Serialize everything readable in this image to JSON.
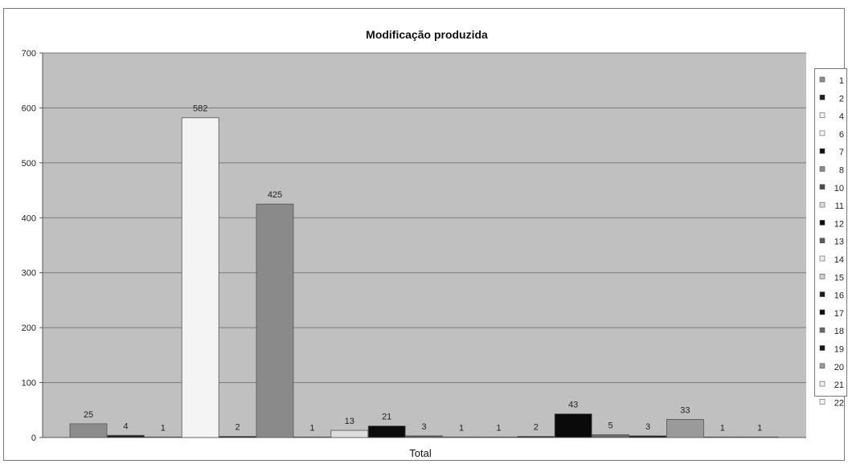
{
  "chart_data": {
    "type": "bar",
    "title": "Modificação produzida",
    "xlabel": "Total",
    "ylabel": "",
    "ylim": [
      0,
      700
    ],
    "yticks": [
      0,
      100,
      200,
      300,
      400,
      500,
      600,
      700
    ],
    "grid": true,
    "legend_position": "right",
    "categories": [
      "Total"
    ],
    "series": [
      {
        "name": "1",
        "values": [
          25
        ],
        "color": "#8c8c8c"
      },
      {
        "name": "2",
        "values": [
          4
        ],
        "color": "#1e1e1e"
      },
      {
        "name": "4",
        "values": [
          1
        ],
        "color": "#f2f2f2"
      },
      {
        "name": "6",
        "values": [
          582
        ],
        "color": "#f4f4f4"
      },
      {
        "name": "7",
        "values": [
          2
        ],
        "color": "#111111"
      },
      {
        "name": "8",
        "values": [
          425
        ],
        "color": "#8a8a8a"
      },
      {
        "name": "10",
        "values": [
          1
        ],
        "color": "#4a4a4a"
      },
      {
        "name": "11",
        "values": [
          13
        ],
        "color": "#dcdcdc"
      },
      {
        "name": "12",
        "values": [
          21
        ],
        "color": "#0c0c0c"
      },
      {
        "name": "13",
        "values": [
          3
        ],
        "color": "#5a5a5a"
      },
      {
        "name": "14",
        "values": [
          1
        ],
        "color": "#eeeeee"
      },
      {
        "name": "15",
        "values": [
          1
        ],
        "color": "#cfcfcf"
      },
      {
        "name": "16",
        "values": [
          2
        ],
        "color": "#1a1a1a"
      },
      {
        "name": "17",
        "values": [
          43
        ],
        "color": "#0a0a0a"
      },
      {
        "name": "18",
        "values": [
          5
        ],
        "color": "#6a6a6a"
      },
      {
        "name": "19",
        "values": [
          3
        ],
        "color": "#141414"
      },
      {
        "name": "20",
        "values": [
          33
        ],
        "color": "#9a9a9a"
      },
      {
        "name": "21",
        "values": [
          1
        ],
        "color": "#f0f0f0"
      },
      {
        "name": "22",
        "values": [
          1
        ],
        "color": "#f6f6f6"
      }
    ],
    "colors": {
      "plot_background": "#c0c0c0",
      "gridline": "#7a7a7a",
      "bar_outline": "#555555"
    }
  }
}
